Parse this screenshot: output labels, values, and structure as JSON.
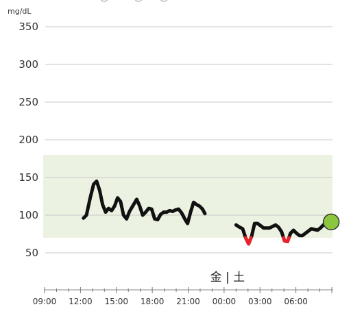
{
  "chart_data": {
    "type": "line",
    "unit_label": "mg/dL",
    "y_ticks": [
      50,
      100,
      150,
      200,
      250,
      300,
      350
    ],
    "ylim": [
      25,
      350
    ],
    "x_ticks": [
      "09:00",
      "12:00",
      "15:00",
      "18:00",
      "21:00",
      "00:00",
      "03:00",
      "06:00"
    ],
    "x_tick_hours": [
      9,
      12,
      15,
      18,
      21,
      24,
      27,
      30
    ],
    "xlim_hours": [
      9,
      33
    ],
    "day_label": "金 | 土",
    "day_label_hour": 24,
    "target_range": [
      70,
      180
    ],
    "colors": {
      "line": "#111111",
      "low": "#e8232a",
      "band": "#ecf2e2",
      "grid": "#c8c8c8",
      "current_fill": "#8cc63f",
      "current_stroke": "#333333"
    },
    "series": [
      {
        "points": [
          [
            12.25,
            96
          ],
          [
            12.5,
            100
          ],
          [
            12.8,
            122
          ],
          [
            13.1,
            141
          ],
          [
            13.35,
            145
          ],
          [
            13.6,
            133
          ],
          [
            13.85,
            114
          ],
          [
            14.1,
            104
          ],
          [
            14.35,
            109
          ],
          [
            14.6,
            106
          ],
          [
            14.85,
            112
          ],
          [
            15.1,
            123
          ],
          [
            15.35,
            118
          ],
          [
            15.6,
            100
          ],
          [
            15.85,
            95
          ],
          [
            16.1,
            105
          ],
          [
            16.4,
            113
          ],
          [
            16.7,
            121
          ],
          [
            16.95,
            112
          ],
          [
            17.2,
            100
          ],
          [
            17.45,
            104
          ],
          [
            17.7,
            109
          ],
          [
            17.95,
            108
          ],
          [
            18.2,
            95
          ],
          [
            18.45,
            94
          ],
          [
            18.7,
            101
          ],
          [
            18.95,
            104
          ],
          [
            19.2,
            104
          ],
          [
            19.45,
            106
          ],
          [
            19.7,
            105
          ],
          [
            19.95,
            107
          ],
          [
            20.2,
            108
          ],
          [
            20.45,
            103
          ],
          [
            20.75,
            94
          ],
          [
            20.95,
            89
          ],
          [
            21.2,
            104
          ],
          [
            21.45,
            117
          ],
          [
            21.7,
            114
          ],
          [
            21.95,
            112
          ],
          [
            22.2,
            108
          ],
          [
            22.4,
            102
          ]
        ]
      },
      {
        "points": [
          [
            25.0,
            87
          ],
          [
            25.3,
            84
          ],
          [
            25.55,
            82
          ],
          [
            25.8,
            70
          ],
          [
            26.05,
            62
          ],
          [
            26.3,
            72
          ],
          [
            26.55,
            89
          ],
          [
            26.8,
            89
          ],
          [
            27.05,
            86
          ],
          [
            27.3,
            83
          ],
          [
            27.55,
            83
          ],
          [
            27.8,
            83
          ],
          [
            28.05,
            85
          ],
          [
            28.3,
            87
          ],
          [
            28.55,
            84
          ],
          [
            28.8,
            78
          ],
          [
            29.05,
            66
          ],
          [
            29.3,
            65
          ],
          [
            29.55,
            76
          ],
          [
            29.8,
            80
          ],
          [
            30.05,
            76
          ],
          [
            30.3,
            73
          ],
          [
            30.55,
            73
          ],
          [
            30.8,
            76
          ],
          [
            31.05,
            79
          ],
          [
            31.3,
            82
          ],
          [
            31.55,
            81
          ],
          [
            31.8,
            80
          ],
          [
            32.05,
            83
          ],
          [
            32.3,
            87
          ],
          [
            32.55,
            88
          ],
          [
            32.8,
            90
          ]
        ]
      }
    ],
    "low_threshold": 70,
    "current_point": [
      32.95,
      91
    ]
  }
}
